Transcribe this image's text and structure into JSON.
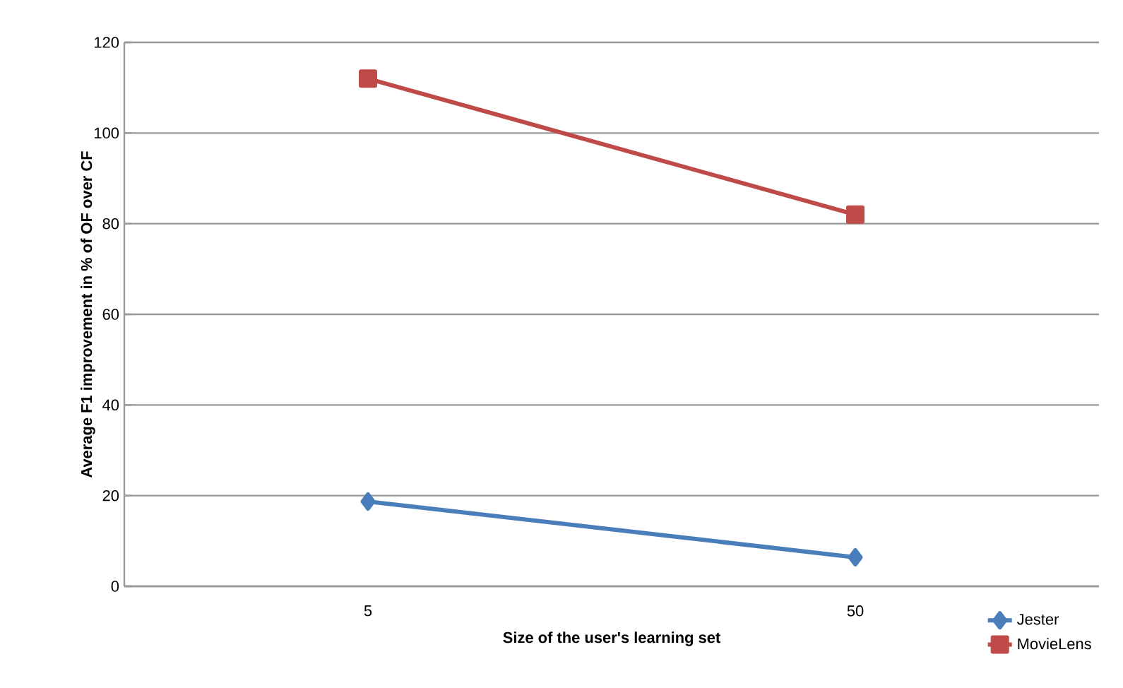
{
  "chart_data": {
    "type": "line",
    "xlabel": "Size of the user's learning set",
    "ylabel": "Average F1 improvement in % of OF over CF",
    "categories": [
      "5",
      "50"
    ],
    "series": [
      {
        "name": "Jester",
        "color": "#4a7ebb",
        "values": [
          18.7,
          6.4
        ],
        "marker": "diamond"
      },
      {
        "name": "MovieLens",
        "color": "#be4b48",
        "values": [
          112,
          82
        ],
        "marker": "square"
      }
    ],
    "ylim": [
      0,
      120
    ],
    "yticks": [
      0,
      20,
      40,
      60,
      80,
      100,
      120
    ],
    "grid": "y",
    "legend": "bottom right",
    "line_style": "solid"
  }
}
